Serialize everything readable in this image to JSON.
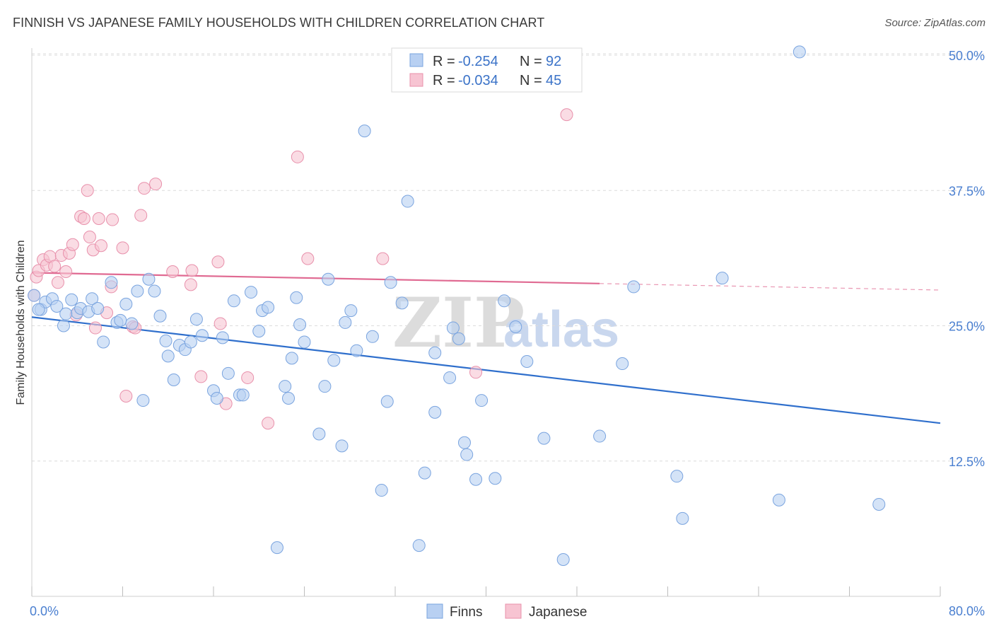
{
  "chart_data": {
    "type": "scatter",
    "title": "FINNISH VS JAPANESE FAMILY HOUSEHOLDS WITH CHILDREN CORRELATION CHART",
    "source": "Source: ZipAtlas.com",
    "ylabel": "Family Households with Children",
    "xlim": [
      0,
      80
    ],
    "ylim": [
      0,
      52
    ],
    "x_tick_labels": [
      "0.0%",
      "80.0%"
    ],
    "y_ticks": [
      12.5,
      25.0,
      37.5,
      50.0
    ],
    "y_tick_labels": [
      "12.5%",
      "25.0%",
      "37.5%",
      "50.0%"
    ],
    "watermark": [
      "ZIP",
      "atlas"
    ],
    "legend": [
      {
        "label": "R = ",
        "r": "-0.254",
        "n_label": "N = ",
        "n": "92"
      },
      {
        "label": "R = ",
        "r": "-0.034",
        "n_label": "N = ",
        "n": "45"
      }
    ],
    "colors": {
      "finns_fill": "#b8d0f2",
      "finns_stroke": "#7aa4df",
      "finns_line": "#2f6fcc",
      "japanese_fill": "#f7c4d2",
      "japanese_stroke": "#e890ab",
      "japanese_line": "#e06a92",
      "grid": "#dcdcdc",
      "axis_text": "#4a7fd0"
    },
    "series": [
      {
        "name": "Finns",
        "trend": {
          "x": [
            0,
            80
          ],
          "y": [
            25.8,
            16.0
          ]
        },
        "points": [
          [
            0.2,
            27.8
          ],
          [
            0.8,
            26.5
          ],
          [
            1.2,
            27.2
          ],
          [
            1.8,
            27.5
          ],
          [
            2.2,
            26.8
          ],
          [
            2.8,
            25.0
          ],
          [
            3.5,
            27.4
          ],
          [
            4.0,
            26.2
          ],
          [
            4.3,
            26.6
          ],
          [
            5.0,
            26.3
          ],
          [
            5.3,
            27.5
          ],
          [
            5.8,
            26.6
          ],
          [
            6.3,
            23.5
          ],
          [
            7.0,
            29.0
          ],
          [
            7.5,
            25.3
          ],
          [
            7.8,
            25.5
          ],
          [
            8.3,
            27.0
          ],
          [
            8.8,
            25.2
          ],
          [
            9.3,
            28.2
          ],
          [
            9.8,
            18.1
          ],
          [
            10.3,
            29.3
          ],
          [
            10.8,
            28.2
          ],
          [
            11.3,
            25.9
          ],
          [
            11.8,
            23.6
          ],
          [
            12.0,
            22.2
          ],
          [
            12.5,
            20.0
          ],
          [
            13.0,
            23.2
          ],
          [
            13.5,
            22.8
          ],
          [
            14.0,
            23.5
          ],
          [
            14.5,
            25.6
          ],
          [
            15.0,
            24.1
          ],
          [
            16.0,
            19.0
          ],
          [
            16.3,
            18.3
          ],
          [
            16.8,
            23.9
          ],
          [
            17.3,
            20.6
          ],
          [
            17.8,
            27.3
          ],
          [
            18.3,
            18.6
          ],
          [
            18.6,
            18.6
          ],
          [
            19.3,
            28.1
          ],
          [
            20.0,
            24.5
          ],
          [
            20.3,
            26.4
          ],
          [
            20.8,
            26.7
          ],
          [
            21.6,
            4.5
          ],
          [
            22.3,
            19.4
          ],
          [
            22.6,
            18.3
          ],
          [
            22.9,
            22.0
          ],
          [
            23.3,
            27.6
          ],
          [
            23.6,
            25.1
          ],
          [
            24.0,
            23.5
          ],
          [
            25.3,
            15.0
          ],
          [
            25.8,
            19.4
          ],
          [
            26.1,
            29.3
          ],
          [
            26.6,
            21.8
          ],
          [
            27.3,
            13.9
          ],
          [
            27.6,
            25.3
          ],
          [
            28.1,
            26.4
          ],
          [
            28.6,
            22.7
          ],
          [
            29.3,
            43.0
          ],
          [
            30.0,
            24.0
          ],
          [
            30.8,
            9.8
          ],
          [
            31.3,
            18.0
          ],
          [
            31.6,
            29.0
          ],
          [
            32.6,
            27.1
          ],
          [
            33.1,
            36.5
          ],
          [
            34.1,
            4.7
          ],
          [
            34.6,
            11.4
          ],
          [
            35.5,
            17.0
          ],
          [
            35.5,
            22.5
          ],
          [
            36.8,
            20.2
          ],
          [
            37.1,
            24.8
          ],
          [
            37.6,
            23.8
          ],
          [
            38.1,
            14.2
          ],
          [
            38.3,
            13.1
          ],
          [
            39.1,
            10.8
          ],
          [
            39.6,
            18.1
          ],
          [
            40.8,
            10.9
          ],
          [
            41.6,
            27.3
          ],
          [
            42.6,
            24.9
          ],
          [
            43.6,
            21.7
          ],
          [
            45.1,
            14.6
          ],
          [
            46.8,
            3.4
          ],
          [
            50.0,
            14.8
          ],
          [
            52.0,
            21.5
          ],
          [
            53.0,
            28.6
          ],
          [
            56.8,
            11.1
          ],
          [
            57.3,
            7.2
          ],
          [
            60.8,
            29.4
          ],
          [
            65.8,
            8.9
          ],
          [
            67.6,
            50.3
          ],
          [
            74.6,
            8.5
          ],
          [
            0.6,
            26.5
          ],
          [
            3.0,
            26.1
          ]
        ]
      },
      {
        "name": "Japanese",
        "trend": {
          "x": [
            0,
            50
          ],
          "y": [
            29.9,
            28.9
          ]
        },
        "trend_dashed": {
          "x": [
            50,
            80
          ],
          "y": [
            28.9,
            28.3
          ]
        },
        "points": [
          [
            0.2,
            27.8
          ],
          [
            0.4,
            29.5
          ],
          [
            0.6,
            30.1
          ],
          [
            1.0,
            31.1
          ],
          [
            1.3,
            30.6
          ],
          [
            1.6,
            31.4
          ],
          [
            2.0,
            30.5
          ],
          [
            2.3,
            29.0
          ],
          [
            2.6,
            31.5
          ],
          [
            3.0,
            30.0
          ],
          [
            3.3,
            31.7
          ],
          [
            3.6,
            32.5
          ],
          [
            3.9,
            26.0
          ],
          [
            4.3,
            35.1
          ],
          [
            4.6,
            34.9
          ],
          [
            4.9,
            37.5
          ],
          [
            5.1,
            33.2
          ],
          [
            5.4,
            32.0
          ],
          [
            5.6,
            24.8
          ],
          [
            5.9,
            34.9
          ],
          [
            6.1,
            32.4
          ],
          [
            6.6,
            26.2
          ],
          [
            7.0,
            28.6
          ],
          [
            7.1,
            34.8
          ],
          [
            8.0,
            32.2
          ],
          [
            8.3,
            18.5
          ],
          [
            8.9,
            24.9
          ],
          [
            9.1,
            24.8
          ],
          [
            9.6,
            35.2
          ],
          [
            9.9,
            37.7
          ],
          [
            10.9,
            38.1
          ],
          [
            12.4,
            30.0
          ],
          [
            14.0,
            28.8
          ],
          [
            14.1,
            30.1
          ],
          [
            14.9,
            20.3
          ],
          [
            16.4,
            30.9
          ],
          [
            16.6,
            25.2
          ],
          [
            17.1,
            17.8
          ],
          [
            19.0,
            20.2
          ],
          [
            20.8,
            16.0
          ],
          [
            23.4,
            40.6
          ],
          [
            24.3,
            31.2
          ],
          [
            30.9,
            31.2
          ],
          [
            39.1,
            20.7
          ],
          [
            47.1,
            44.5
          ]
        ]
      }
    ]
  },
  "bottom_legend": [
    "Finns",
    "Japanese"
  ]
}
